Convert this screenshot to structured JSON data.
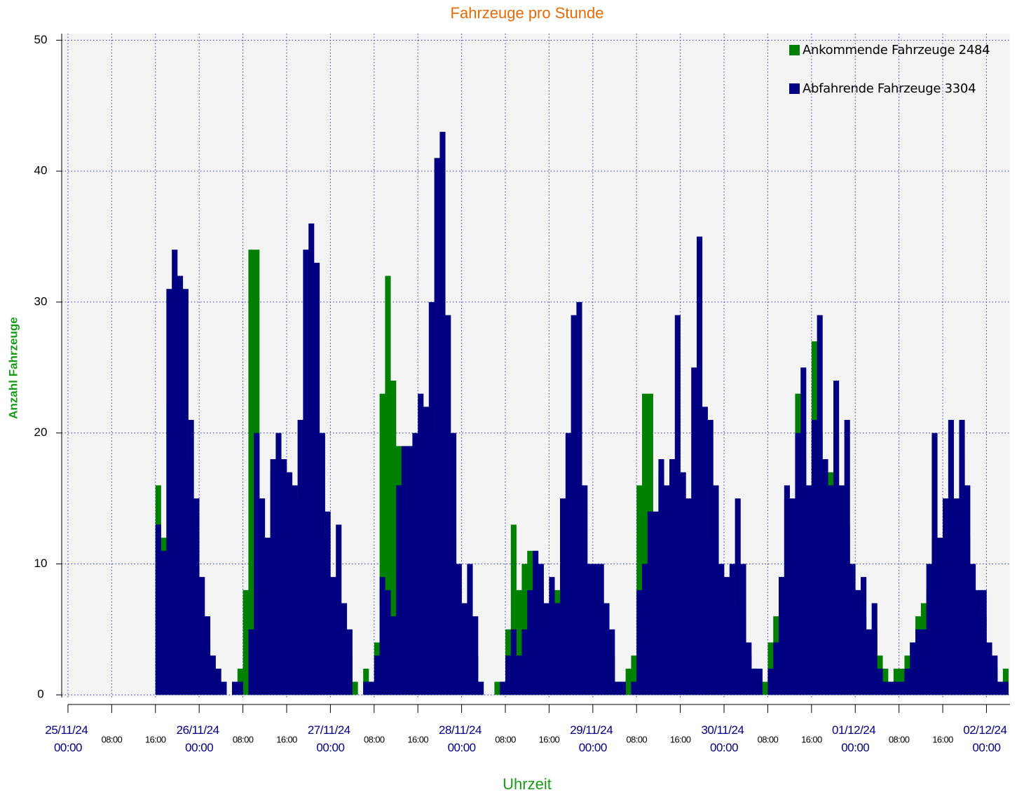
{
  "chart_data": {
    "type": "bar",
    "title": "Fahrzeuge pro Stunde",
    "x_label": "Uhrzeit",
    "y_label": "Anzahl Fahrzeuge",
    "x": [
      0,
      1,
      2,
      3,
      4,
      5,
      6,
      7,
      8,
      9,
      10,
      11,
      12,
      13,
      14,
      15,
      16,
      17,
      18,
      19,
      20,
      21,
      22,
      23,
      24,
      25,
      26,
      27,
      28,
      29,
      30,
      31,
      32,
      33,
      34,
      35,
      36,
      37,
      38,
      39,
      40,
      41,
      42,
      43,
      44,
      45,
      46,
      47,
      48,
      49,
      50,
      51,
      52,
      53,
      54,
      55,
      56,
      57,
      58,
      59,
      60,
      61,
      62,
      63,
      64,
      65,
      66,
      67,
      68,
      69,
      70,
      71,
      72,
      73,
      74,
      75,
      76,
      77,
      78,
      79,
      80,
      81,
      82,
      83,
      84,
      85,
      86,
      87,
      88,
      89,
      90,
      91,
      92,
      93,
      94,
      95,
      96,
      97,
      98,
      99,
      100,
      101,
      102,
      103,
      104,
      105,
      106,
      107,
      108,
      109,
      110,
      111,
      112,
      113,
      114,
      115,
      116,
      117,
      118,
      119,
      120,
      121,
      122,
      123,
      124,
      125,
      126,
      127,
      128,
      129,
      130,
      131,
      132,
      133,
      134,
      135,
      136,
      137,
      138,
      139,
      140,
      141,
      142,
      143,
      144,
      145,
      146,
      147,
      148,
      149,
      150,
      151,
      152,
      153,
      154,
      155,
      156,
      157,
      158,
      159,
      160,
      161,
      162,
      163,
      164,
      165,
      166,
      167,
      168,
      169,
      170,
      171
    ],
    "series": [
      {
        "name": "Ankommende Fahrzeuge 2484",
        "color": "#008000",
        "values": [
          0,
          0,
          0,
          0,
          0,
          0,
          0,
          0,
          0,
          0,
          0,
          0,
          0,
          0,
          0,
          0,
          16,
          12,
          22,
          23,
          20,
          18,
          12,
          8,
          5,
          4,
          2,
          1,
          0,
          0,
          0,
          2,
          8,
          34,
          34,
          15,
          12,
          17,
          18,
          15,
          12,
          13,
          15,
          18,
          20,
          16,
          12,
          8,
          5,
          6,
          4,
          3,
          1,
          0,
          2,
          1,
          4,
          23,
          32,
          24,
          19,
          14,
          12,
          14,
          15,
          16,
          18,
          20,
          22,
          15,
          12,
          7,
          5,
          6,
          3,
          1,
          0,
          0,
          1,
          1,
          5,
          13,
          8,
          10,
          11,
          11,
          8,
          6,
          7,
          8,
          10,
          12,
          14,
          13,
          9,
          6,
          5,
          6,
          4,
          3,
          1,
          1,
          2,
          3,
          16,
          23,
          23,
          12,
          17,
          14,
          13,
          15,
          12,
          11,
          13,
          15,
          12,
          12,
          9,
          7,
          6,
          6,
          7,
          6,
          3,
          2,
          1,
          1,
          4,
          6,
          9,
          15,
          14,
          23,
          18,
          14,
          27,
          20,
          15,
          17,
          20,
          12,
          13,
          8,
          6,
          6,
          4,
          5,
          3,
          2,
          1,
          2,
          2,
          3,
          4,
          6,
          7,
          8,
          12,
          10,
          12,
          15,
          14,
          18,
          12,
          8,
          6,
          6,
          3,
          2,
          1,
          2
        ]
      },
      {
        "name": "Abfahrende Fahrzeuge 3304",
        "color": "#000080",
        "values": [
          0,
          0,
          0,
          0,
          0,
          0,
          0,
          0,
          0,
          0,
          0,
          0,
          0,
          0,
          0,
          0,
          13,
          11,
          31,
          34,
          32,
          31,
          21,
          15,
          9,
          6,
          3,
          2,
          1,
          0,
          1,
          1,
          0,
          5,
          20,
          15,
          12,
          18,
          20,
          18,
          17,
          16,
          21,
          34,
          36,
          33,
          20,
          14,
          9,
          13,
          7,
          5,
          0,
          0,
          1,
          1,
          3,
          9,
          8,
          6,
          16,
          19,
          19,
          20,
          23,
          22,
          30,
          41,
          43,
          29,
          20,
          10,
          7,
          10,
          6,
          1,
          0,
          0,
          0,
          1,
          3,
          5,
          3,
          5,
          8,
          11,
          10,
          7,
          9,
          7,
          15,
          20,
          29,
          30,
          16,
          10,
          10,
          10,
          7,
          5,
          1,
          1,
          0,
          1,
          8,
          10,
          14,
          14,
          18,
          16,
          18,
          29,
          17,
          15,
          25,
          35,
          22,
          21,
          16,
          10,
          9,
          10,
          15,
          10,
          4,
          2,
          2,
          0,
          2,
          4,
          9,
          16,
          15,
          20,
          25,
          16,
          21,
          29,
          18,
          16,
          24,
          16,
          21,
          10,
          8,
          9,
          5,
          7,
          2,
          1,
          1,
          1,
          1,
          2,
          4,
          5,
          5,
          10,
          20,
          12,
          15,
          21,
          15,
          21,
          16,
          10,
          8,
          8,
          4,
          3,
          1,
          1
        ]
      }
    ],
    "xlim": [
      -1.15,
      172.3
    ],
    "xticks": [
      {
        "value": 0,
        "label": "25/11/24 00:00"
      },
      {
        "value": 8,
        "label": "08:00"
      },
      {
        "value": 16,
        "label": "16:00"
      },
      {
        "value": 24,
        "label": "26/11/24 00:00"
      },
      {
        "value": 32,
        "label": "08:00"
      },
      {
        "value": 40,
        "label": "16:00"
      },
      {
        "value": 48,
        "label": "27/11/24 00:00"
      },
      {
        "value": 56,
        "label": "08:00"
      },
      {
        "value": 64,
        "label": "16:00"
      },
      {
        "value": 72,
        "label": "28/11/24 00:00"
      },
      {
        "value": 80,
        "label": "08:00"
      },
      {
        "value": 88,
        "label": "16:00"
      },
      {
        "value": 96,
        "label": "29/11/24 00:00"
      },
      {
        "value": 104,
        "label": "08:00"
      },
      {
        "value": 112,
        "label": "16:00"
      },
      {
        "value": 120,
        "label": "30/11/24 00:00"
      },
      {
        "value": 128,
        "label": "08:00"
      },
      {
        "value": 136,
        "label": "16:00"
      },
      {
        "value": 144,
        "label": "01/12/24 00:00"
      },
      {
        "value": 152,
        "label": "08:00"
      },
      {
        "value": 160,
        "label": "16:00"
      },
      {
        "value": 168,
        "label": "02/12/24 00:00"
      }
    ],
    "ylim": [
      -0.2,
      50.5
    ],
    "yticks": [
      0,
      10,
      20,
      30,
      40,
      50
    ],
    "grid": true,
    "legend": "top-right"
  }
}
